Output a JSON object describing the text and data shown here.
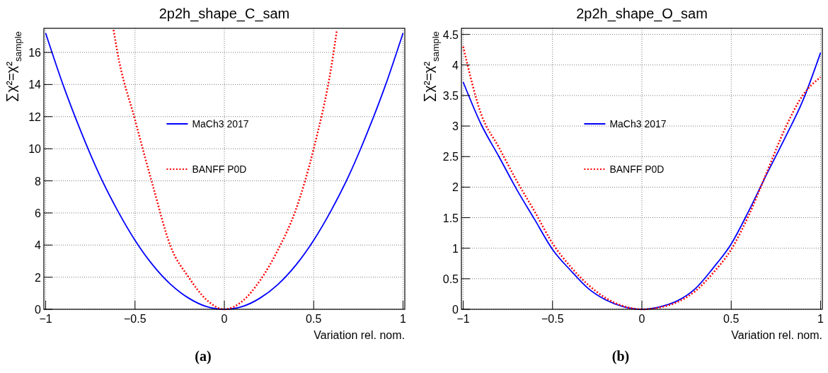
{
  "chart_data": [
    {
      "type": "line",
      "title": "2p2h_shape_C_sam",
      "xlabel": "Variation rel. nom.",
      "ylabel": "∑χ²=χ²$_{sample}$",
      "annotations": [
        "(a)"
      ],
      "grid": true,
      "legend": "center",
      "xlim": [
        -1.01,
        1.01
      ],
      "xticks": [
        -1,
        -0.5,
        0,
        0.5,
        1
      ],
      "ylim": [
        0,
        17.5
      ],
      "yticks": [
        0,
        2,
        4,
        6,
        8,
        10,
        12,
        14,
        16
      ],
      "series": [
        {
          "name": "MaCh3 2017",
          "color": "#0000ff",
          "line_style": "solid",
          "x": [
            -1,
            -0.9,
            -0.8,
            -0.7,
            -0.6,
            -0.5,
            -0.4,
            -0.3,
            -0.2,
            -0.1,
            0,
            0.1,
            0.2,
            0.3,
            0.4,
            0.5,
            0.6,
            0.7,
            0.8,
            0.9,
            1
          ],
          "values": [
            17.2,
            13.9,
            11.0,
            8.4,
            6.2,
            4.3,
            2.75,
            1.55,
            0.7,
            0.17,
            0,
            0.17,
            0.7,
            1.55,
            2.75,
            4.3,
            6.2,
            8.4,
            11.0,
            13.9,
            17.2
          ]
        },
        {
          "name": "BANFF P0D",
          "color": "#ff0000",
          "line_style": "dotted",
          "x": [
            -0.62,
            -0.6,
            -0.5,
            -0.4,
            -0.3,
            -0.2,
            -0.1,
            0,
            0.1,
            0.2,
            0.3,
            0.4,
            0.5,
            0.6,
            0.63
          ],
          "values": [
            17.4,
            16.1,
            11.8,
            7.7,
            3.9,
            2.0,
            0.6,
            0,
            0.5,
            1.8,
            3.7,
            6.2,
            10.0,
            15.2,
            17.4
          ]
        }
      ]
    },
    {
      "type": "line",
      "title": "2p2h_shape_O_sam",
      "xlabel": "Variation rel. nom.",
      "ylabel": "∑χ²=χ²$_{sample}$",
      "annotations": [
        "(b)"
      ],
      "grid": true,
      "legend": "center",
      "xlim": [
        -1.01,
        1.01
      ],
      "xticks": [
        -1,
        -0.5,
        0,
        0.5,
        1
      ],
      "ylim": [
        0,
        4.6
      ],
      "yticks": [
        0,
        0.5,
        1,
        1.5,
        2,
        2.5,
        3,
        3.5,
        4,
        4.5
      ],
      "series": [
        {
          "name": "MaCh3 2017",
          "color": "#0000ff",
          "line_style": "solid",
          "x": [
            -1,
            -0.9,
            -0.8,
            -0.7,
            -0.6,
            -0.5,
            -0.4,
            -0.3,
            -0.2,
            -0.1,
            0,
            0.1,
            0.2,
            0.3,
            0.4,
            0.5,
            0.6,
            0.7,
            0.8,
            0.9,
            1
          ],
          "values": [
            3.72,
            3.03,
            2.5,
            1.96,
            1.47,
            0.98,
            0.64,
            0.34,
            0.15,
            0.04,
            0,
            0.04,
            0.14,
            0.34,
            0.68,
            1.07,
            1.62,
            2.22,
            2.8,
            3.41,
            4.2
          ]
        },
        {
          "name": "BANFF P0D",
          "color": "#ff0000",
          "line_style": "dotted",
          "x": [
            -1,
            -0.9,
            -0.8,
            -0.7,
            -0.6,
            -0.5,
            -0.4,
            -0.3,
            -0.2,
            -0.1,
            0,
            0.1,
            0.2,
            0.3,
            0.4,
            0.5,
            0.6,
            0.7,
            0.8,
            0.9,
            1
          ],
          "values": [
            4.3,
            3.2,
            2.65,
            2.1,
            1.6,
            1.08,
            0.7,
            0.4,
            0.18,
            0.05,
            0,
            0.03,
            0.12,
            0.3,
            0.6,
            0.98,
            1.55,
            2.25,
            2.95,
            3.5,
            3.8
          ]
        }
      ]
    }
  ]
}
